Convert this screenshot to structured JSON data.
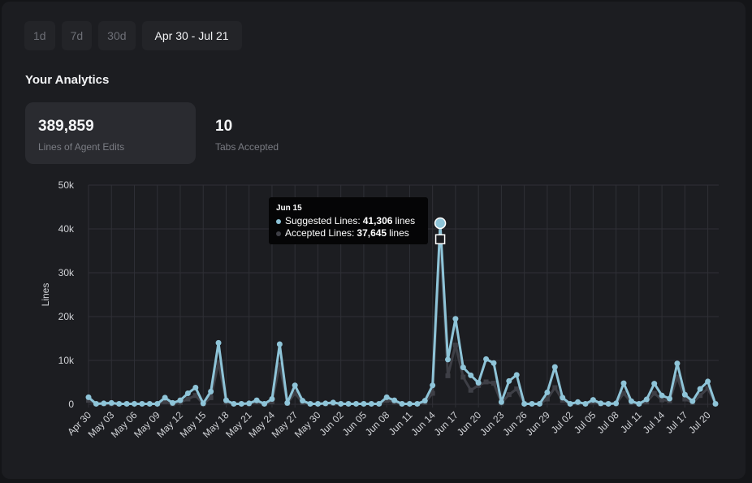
{
  "range_options": [
    "1d",
    "7d",
    "30d",
    "Apr 30 - Jul 21"
  ],
  "selected_range": "Apr 30 - Jul 21",
  "section_title": "Your Analytics",
  "stats": [
    {
      "value": "389,859",
      "label": "Lines of Agent Edits"
    },
    {
      "value": "10",
      "label": "Tabs Accepted"
    }
  ],
  "tooltip": {
    "date": "Jun 15",
    "rows": [
      {
        "label": "Suggested Lines:",
        "value": "41,306",
        "unit": "lines"
      },
      {
        "label": "Accepted Lines:",
        "value": "37,645",
        "unit": "lines"
      }
    ]
  },
  "colors": {
    "suggested": "#8ec4d8",
    "accepted": "#3e3f46",
    "grid": "#2f3036",
    "text": "#d0d2d6"
  },
  "chart_data": {
    "type": "line",
    "ylabel": "Lines",
    "xlabel": "",
    "ylim": [
      0,
      50000
    ],
    "yticks": [
      0,
      10000,
      20000,
      30000,
      40000,
      50000
    ],
    "ytick_labels": [
      "0",
      "10k",
      "20k",
      "30k",
      "40k",
      "50k"
    ],
    "grid": true,
    "x": [
      "Apr 30",
      "May 01",
      "May 02",
      "May 03",
      "May 04",
      "May 05",
      "May 06",
      "May 07",
      "May 08",
      "May 09",
      "May 10",
      "May 11",
      "May 12",
      "May 13",
      "May 14",
      "May 15",
      "May 16",
      "May 17",
      "May 18",
      "May 19",
      "May 20",
      "May 21",
      "May 22",
      "May 23",
      "May 24",
      "May 25",
      "May 26",
      "May 27",
      "May 28",
      "May 29",
      "May 30",
      "May 31",
      "Jun 01",
      "Jun 02",
      "Jun 03",
      "Jun 04",
      "Jun 05",
      "Jun 06",
      "Jun 07",
      "Jun 08",
      "Jun 09",
      "Jun 10",
      "Jun 11",
      "Jun 12",
      "Jun 13",
      "Jun 14",
      "Jun 15",
      "Jun 16",
      "Jun 17",
      "Jun 18",
      "Jun 19",
      "Jun 20",
      "Jun 21",
      "Jun 22",
      "Jun 23",
      "Jun 24",
      "Jun 25",
      "Jun 26",
      "Jun 27",
      "Jun 28",
      "Jun 29",
      "Jun 30",
      "Jul 01",
      "Jul 02",
      "Jul 03",
      "Jul 04",
      "Jul 05",
      "Jul 06",
      "Jul 07",
      "Jul 08",
      "Jul 09",
      "Jul 10",
      "Jul 11",
      "Jul 12",
      "Jul 13",
      "Jul 14",
      "Jul 15",
      "Jul 16",
      "Jul 17",
      "Jul 18",
      "Jul 19",
      "Jul 20",
      "Jul 21"
    ],
    "x_tick_labels": [
      "Apr 30",
      "May 03",
      "May 06",
      "May 09",
      "May 12",
      "May 15",
      "May 18",
      "May 21",
      "May 24",
      "May 27",
      "May 30",
      "Jun 02",
      "Jun 05",
      "Jun 08",
      "Jun 11",
      "Jun 14",
      "Jun 17",
      "Jun 20",
      "Jun 23",
      "Jun 26",
      "Jun 29",
      "Jul 02",
      "Jul 05",
      "Jul 08",
      "Jul 11",
      "Jul 14",
      "Jul 17",
      "Jul 20"
    ],
    "series": [
      {
        "name": "Suggested Lines",
        "values": [
          1600,
          100,
          200,
          300,
          100,
          100,
          100,
          100,
          100,
          100,
          1500,
          300,
          900,
          2500,
          3800,
          200,
          2900,
          14000,
          900,
          100,
          100,
          200,
          900,
          100,
          1200,
          13700,
          300,
          4300,
          800,
          100,
          100,
          200,
          400,
          100,
          100,
          100,
          100,
          100,
          100,
          1600,
          900,
          100,
          100,
          100,
          800,
          4300,
          41306,
          10200,
          19500,
          8400,
          6600,
          4900,
          10300,
          9400,
          500,
          5300,
          6700,
          100,
          100,
          100,
          2700,
          8500,
          1500,
          100,
          500,
          100,
          1000,
          200,
          100,
          200,
          4800,
          700,
          100,
          1100,
          4700,
          2000,
          1300,
          9300,
          2200,
          700,
          3500,
          5200,
          100
        ]
      },
      {
        "name": "Accepted Lines",
        "values": [
          900,
          100,
          100,
          100,
          100,
          100,
          100,
          100,
          100,
          100,
          600,
          100,
          400,
          1200,
          2000,
          100,
          1500,
          9500,
          500,
          100,
          100,
          100,
          500,
          100,
          600,
          9000,
          200,
          2500,
          400,
          100,
          100,
          100,
          200,
          100,
          100,
          100,
          100,
          100,
          100,
          900,
          500,
          100,
          100,
          100,
          400,
          2500,
          37645,
          6500,
          13500,
          6200,
          3200,
          4300,
          5100,
          4800,
          300,
          2200,
          3500,
          100,
          100,
          100,
          1200,
          3800,
          900,
          100,
          300,
          100,
          500,
          100,
          100,
          100,
          2500,
          400,
          100,
          500,
          2500,
          1000,
          800,
          6200,
          1200,
          400,
          2000,
          3600,
          100
        ]
      }
    ],
    "highlight": {
      "index": 46,
      "date": "Jun 15"
    }
  }
}
